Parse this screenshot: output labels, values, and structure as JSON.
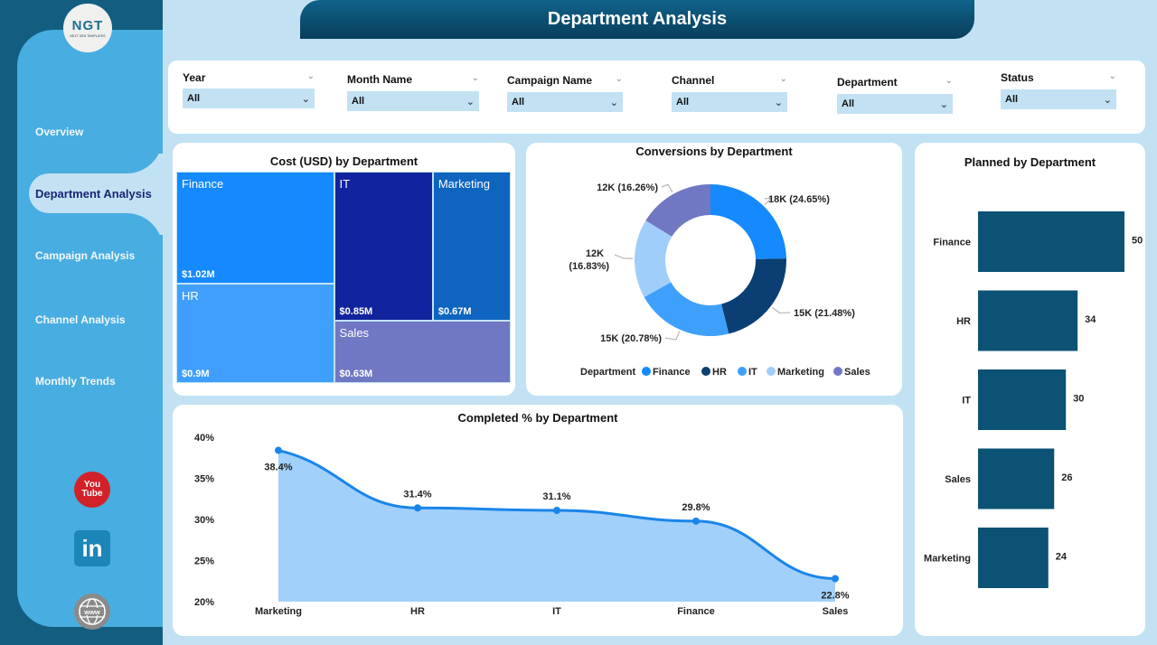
{
  "sidebar": {
    "logo": {
      "text": "NGT",
      "subtext": "NEXT GEN TEMPLATES"
    },
    "items": [
      {
        "label": "Overview",
        "active": false
      },
      {
        "label": "Department Analysis",
        "active": true
      },
      {
        "label": "Campaign Analysis",
        "active": false
      },
      {
        "label": "Channel Analysis",
        "active": false
      },
      {
        "label": "Monthly Trends",
        "active": false
      }
    ],
    "social": {
      "youtube_top": "You",
      "youtube_bottom": "Tube",
      "linkedin": "in",
      "web": "www"
    }
  },
  "header": {
    "title": "Department Analysis"
  },
  "filters": [
    {
      "label": "Year",
      "value": "All"
    },
    {
      "label": "Month Name",
      "value": "All"
    },
    {
      "label": "Campaign Name",
      "value": "All"
    },
    {
      "label": "Channel",
      "value": "All"
    },
    {
      "label": "Department",
      "value": "All"
    },
    {
      "label": "Status",
      "value": "All"
    }
  ],
  "chart_data": [
    {
      "type": "treemap",
      "title": "Cost (USD) by Department",
      "categories": [
        "Finance",
        "HR",
        "IT",
        "Marketing",
        "Sales"
      ],
      "values": [
        1.02,
        0.9,
        0.85,
        0.67,
        0.63
      ],
      "labels": [
        "$1.02M",
        "$0.9M",
        "$0.85M",
        "$0.67M",
        "$0.63M"
      ],
      "colors": [
        "#1589ff",
        "#409ffd",
        "#12239e",
        "#0e64bf",
        "#7078c4"
      ]
    },
    {
      "type": "pie",
      "title": "Conversions by Department",
      "legend_title": "Department",
      "legend_position": "bottom",
      "categories": [
        "Finance",
        "HR",
        "IT",
        "Marketing",
        "Sales"
      ],
      "values": [
        18,
        15,
        15,
        12,
        12
      ],
      "percents": [
        24.65,
        21.48,
        20.78,
        16.83,
        16.26
      ],
      "labels": [
        "18K (24.65%)",
        "15K (21.48%)",
        "15K (20.78%)",
        "12K (16.83%)",
        "12K (16.26%)"
      ],
      "colors": [
        "#1589ff",
        "#0b3f73",
        "#3fa0fb",
        "#a0cefa",
        "#7078c4"
      ]
    },
    {
      "type": "area",
      "title": "Completed % by Department",
      "categories": [
        "Marketing",
        "HR",
        "IT",
        "Finance",
        "Sales"
      ],
      "values": [
        38.4,
        31.4,
        31.1,
        29.8,
        22.8
      ],
      "labels": [
        "38.4%",
        "31.4%",
        "31.1%",
        "29.8%",
        "22.8%"
      ],
      "yticks": [
        "20%",
        "25%",
        "30%",
        "35%",
        "40%"
      ],
      "ylim": [
        20,
        40
      ],
      "line_color": "#1a85e8",
      "fill_color": "#a1d0fb"
    },
    {
      "type": "bar",
      "orientation": "horizontal",
      "title": "Planned by Department",
      "categories": [
        "Finance",
        "HR",
        "IT",
        "Sales",
        "Marketing"
      ],
      "values": [
        50,
        34,
        30,
        26,
        24
      ],
      "color": "#0b5274"
    }
  ]
}
